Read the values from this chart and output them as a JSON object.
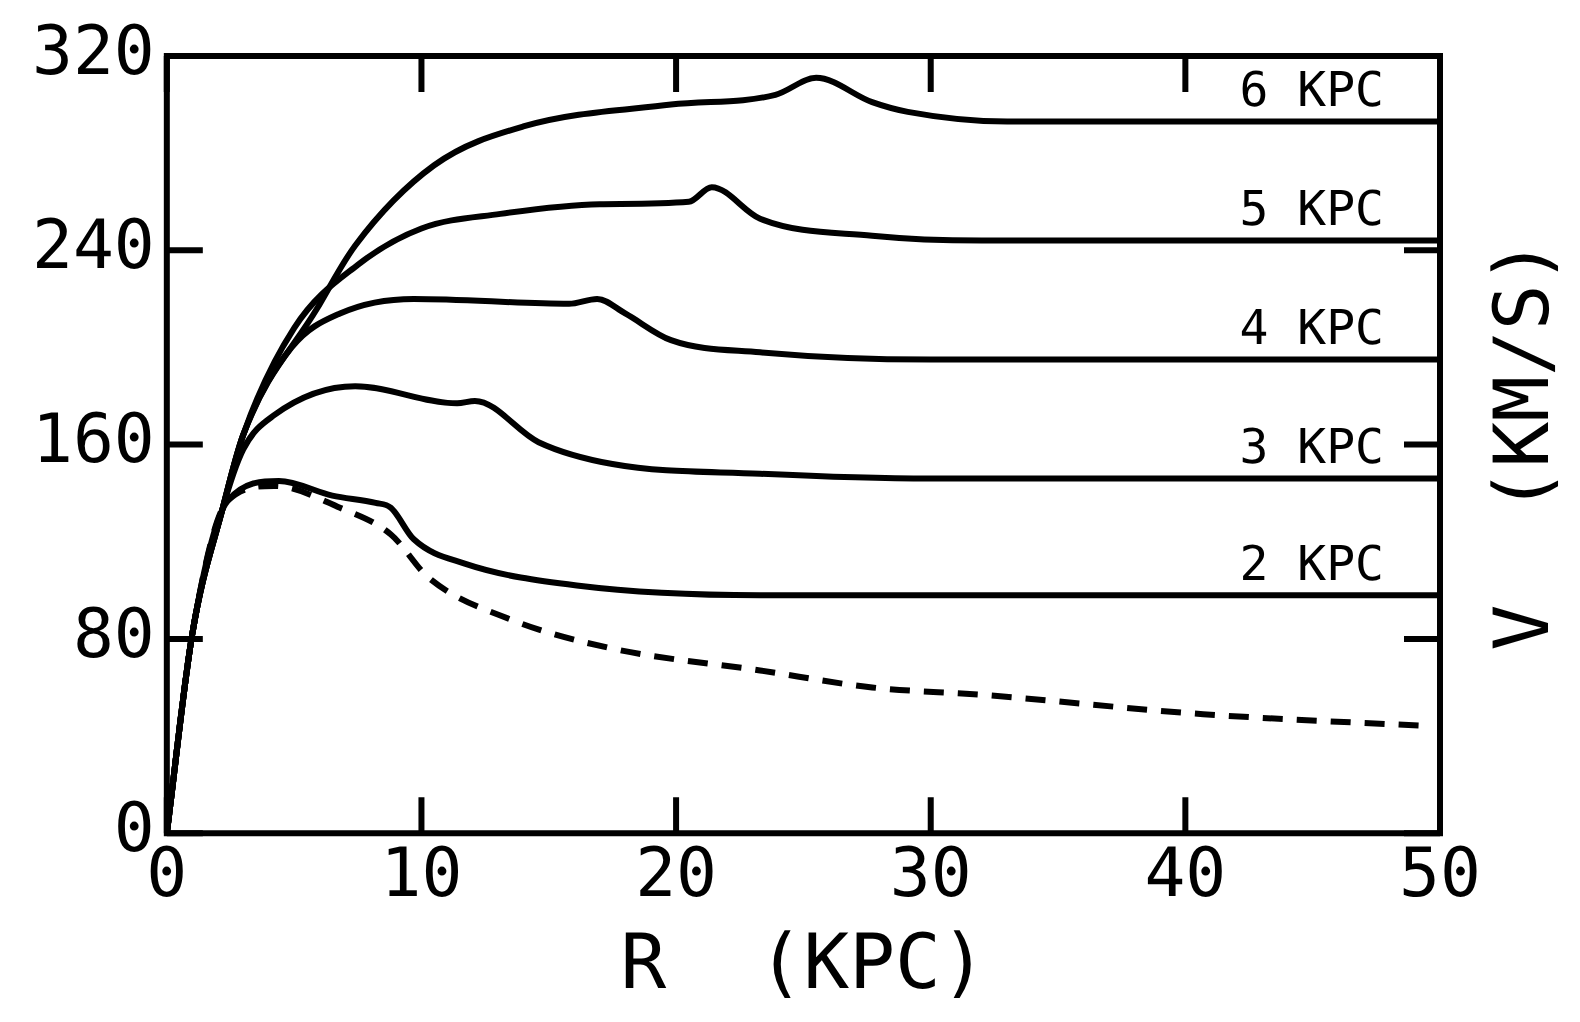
{
  "chart_data": {
    "type": "line",
    "xlabel": "R  (KPC)",
    "ylabel": "V  (KM/S)",
    "xlim": [
      0,
      50
    ],
    "ylim": [
      0,
      320
    ],
    "xticks": [
      0,
      10,
      20,
      30,
      40,
      50
    ],
    "yticks": [
      0,
      80,
      160,
      240,
      320
    ],
    "grid": false,
    "legend": "right",
    "marker": "none",
    "line_style": "solid",
    "series": [
      {
        "name": "6 KPC",
        "color": "#000000",
        "x": [
          0,
          1,
          2.2,
          3,
          5.9,
          7.4,
          10.5,
          14,
          19.8,
          23.9,
          25.5,
          27.7,
          29.1,
          33,
          40,
          50
        ],
        "values": [
          0,
          82,
          134,
          164,
          216,
          242,
          275,
          291,
          300,
          304,
          311,
          301,
          297,
          293,
          293,
          293
        ]
      },
      {
        "name": "5 KPC",
        "color": "#000000",
        "x": [
          0,
          1,
          2.2,
          3,
          5,
          7.5,
          10,
          13.1,
          17,
          20.5,
          21.4,
          23.3,
          27.7,
          32,
          40,
          50
        ],
        "values": [
          0,
          82,
          134,
          164,
          208,
          234,
          249,
          255,
          259,
          260,
          266,
          253,
          246,
          244,
          244,
          244
        ]
      },
      {
        "name": "4 KPC",
        "color": "#000000",
        "x": [
          0,
          1,
          2.2,
          3,
          4.9,
          6.8,
          9.7,
          15.8,
          16.9,
          18,
          19.8,
          23.3,
          30,
          40,
          50
        ],
        "values": [
          0,
          82,
          134,
          164,
          200,
          214,
          220,
          218,
          220,
          214,
          203,
          198,
          195,
          195,
          195
        ]
      },
      {
        "name": "3 KPC",
        "color": "#000000",
        "x": [
          0,
          1,
          2.2,
          3,
          4.2,
          7.4,
          11.4,
          12.1,
          14.6,
          17.5,
          23.3,
          30,
          40,
          50
        ],
        "values": [
          0,
          82,
          134,
          158,
          172,
          184,
          177,
          178,
          161,
          152,
          148,
          146,
          146,
          146
        ]
      },
      {
        "name": "2 KPC",
        "color": "#000000",
        "x": [
          0,
          1,
          2.4,
          4.4,
          6.5,
          8.2,
          8.8,
          9.7,
          11.7,
          16.1,
          23.3,
          30,
          40,
          50
        ],
        "values": [
          0,
          82,
          137,
          145,
          139,
          136,
          134,
          121,
          111,
          102,
          98,
          98,
          98,
          98
        ]
      },
      {
        "color": "#000000",
        "line_style": "dashed",
        "x": [
          0,
          1,
          2.4,
          4.2,
          6.8,
          8.8,
          10.3,
          13.5,
          17.5,
          23.3,
          27.7,
          32,
          40.7,
          49.7
        ],
        "values": [
          0,
          82,
          137,
          143,
          134,
          123,
          105,
          88,
          76,
          67,
          60,
          57,
          49,
          44
        ]
      }
    ]
  }
}
